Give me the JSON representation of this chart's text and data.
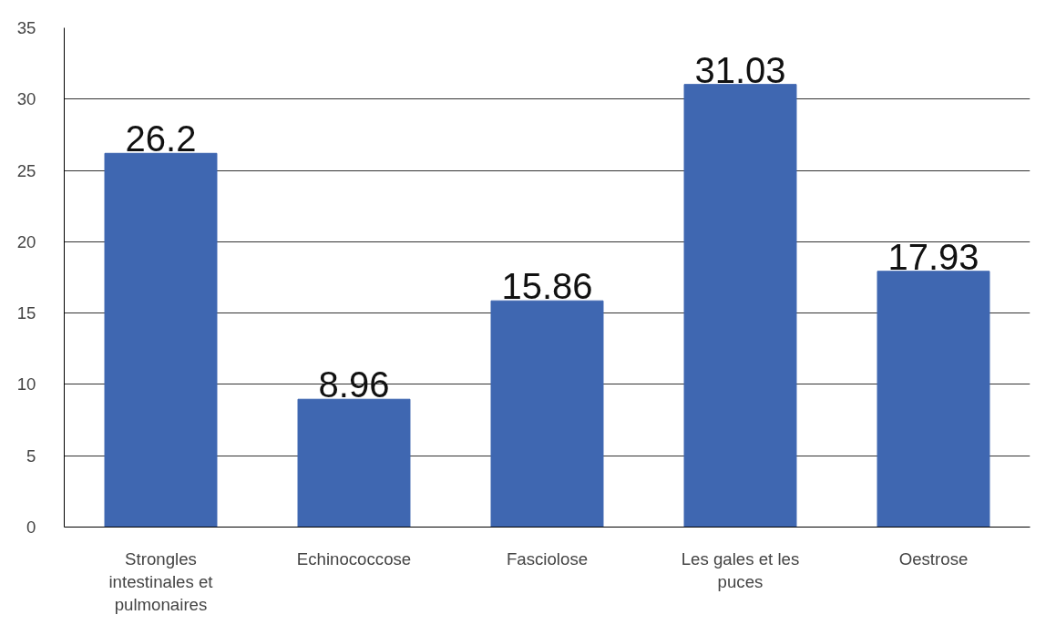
{
  "chart_data": {
    "type": "bar",
    "categories": [
      "Strongles intestinales et pulmonaires",
      "Echinococcose",
      "Fasciolose",
      "Les gales et les puces",
      "Oestrose"
    ],
    "values": [
      26.2,
      8.96,
      15.86,
      31.03,
      17.93
    ],
    "color": "#3f67b1",
    "ylim": [
      0,
      35
    ],
    "yticks": [
      0,
      5,
      10,
      15,
      20,
      25,
      30,
      35
    ],
    "grid": "y",
    "data_labels": true
  }
}
